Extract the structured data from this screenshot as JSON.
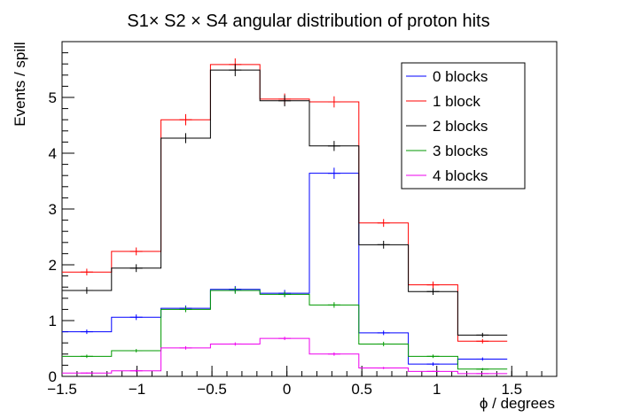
{
  "chart_data": {
    "type": "line",
    "title": "S1× S2 × S4 angular distribution of proton hits",
    "xlabel": "ϕ / degrees",
    "ylabel": "Events / spill",
    "xlim": [
      -1.5,
      1.8
    ],
    "ylim": [
      0,
      6.0
    ],
    "x_ticks": [
      "−1.5",
      "−1",
      "−0.5",
      "0",
      "0.5",
      "1",
      "1.5"
    ],
    "x_tick_values": [
      -1.5,
      -1,
      -0.5,
      0,
      0.5,
      1,
      1.5
    ],
    "y_ticks": [
      "0",
      "1",
      "2",
      "3",
      "4",
      "5"
    ],
    "y_tick_values": [
      0,
      1,
      2,
      3,
      4,
      5
    ],
    "bin_edges": [
      -1.5,
      -1.17,
      -0.84,
      -0.51,
      -0.18,
      0.15,
      0.48,
      0.81,
      1.14,
      1.47
    ],
    "series": [
      {
        "name": "0 blocks",
        "color": "#0000ff",
        "values": [
          0.8,
          1.06,
          1.22,
          1.56,
          1.49,
          3.64,
          0.78,
          0.22,
          0.31
        ],
        "errors": [
          0.04,
          0.05,
          0.05,
          0.06,
          0.06,
          0.1,
          0.04,
          0.03,
          0.03
        ]
      },
      {
        "name": "1 block",
        "color": "#ff0000",
        "values": [
          1.87,
          2.24,
          4.6,
          5.59,
          4.97,
          4.92,
          2.75,
          1.64,
          0.63
        ],
        "errors": [
          0.06,
          0.07,
          0.1,
          0.11,
          0.1,
          0.1,
          0.07,
          0.06,
          0.04
        ]
      },
      {
        "name": "2 blocks",
        "color": "#000000",
        "values": [
          1.54,
          1.94,
          4.27,
          5.49,
          4.94,
          4.13,
          2.36,
          1.52,
          0.74
        ],
        "errors": [
          0.06,
          0.07,
          0.09,
          0.11,
          0.1,
          0.09,
          0.07,
          0.06,
          0.04
        ]
      },
      {
        "name": "3 blocks",
        "color": "#009900",
        "values": [
          0.36,
          0.46,
          1.2,
          1.54,
          1.47,
          1.28,
          0.58,
          0.36,
          0.13
        ],
        "errors": [
          0.03,
          0.03,
          0.05,
          0.06,
          0.05,
          0.05,
          0.04,
          0.03,
          0.02
        ]
      },
      {
        "name": "4 blocks",
        "color": "#ee00ee",
        "values": [
          0.06,
          0.1,
          0.51,
          0.58,
          0.68,
          0.4,
          0.15,
          0.09,
          0.05
        ],
        "errors": [
          0.01,
          0.02,
          0.03,
          0.03,
          0.03,
          0.03,
          0.02,
          0.01,
          0.01
        ]
      }
    ],
    "legend_position": "top-right",
    "grid": false
  }
}
